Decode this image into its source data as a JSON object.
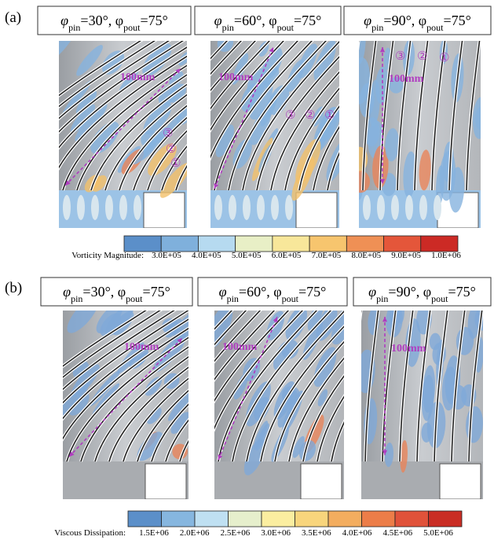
{
  "panels": [
    {
      "label": "(a)",
      "cases": [
        {
          "title": [
            "φ",
            "pin",
            "=30°, φ",
            "pout",
            "=75°"
          ],
          "dimension": "100mm",
          "markers": [
            "③",
            "②",
            "①"
          ]
        },
        {
          "title": [
            "φ",
            "pin",
            "=60°, φ",
            "pout",
            "=75°"
          ],
          "dimension": "100mm",
          "markers": [
            "③",
            "②",
            "①"
          ]
        },
        {
          "title": [
            "φ",
            "pin",
            "=90°, φ",
            "pout",
            "=75°"
          ],
          "dimension": "100mm",
          "markers": [
            "③",
            "②",
            "①"
          ]
        }
      ],
      "colorbar": {
        "title": "Vorticity Magnitude:",
        "colors": [
          "#5b8fc9",
          "#7fb0dc",
          "#b6daf0",
          "#e8efc6",
          "#f8e79a",
          "#f7c56e",
          "#ef9055",
          "#e4563a",
          "#cc2a25"
        ],
        "labels": [
          "3.0E+05",
          "4.0E+05",
          "5.0E+05",
          "6.0E+05",
          "7.0E+05",
          "8.0E+05",
          "9.0E+05",
          "1.0E+06"
        ]
      }
    },
    {
      "label": "(b)",
      "cases": [
        {
          "title": [
            "φ",
            "pin",
            "=30°, φ",
            "pout",
            "=75°"
          ],
          "dimension": "100mm"
        },
        {
          "title": [
            "φ",
            "pin",
            "=60°, φ",
            "pout",
            "=75°"
          ],
          "dimension": "100mm"
        },
        {
          "title": [
            "φ",
            "pin",
            "=90°, φ",
            "pout",
            "=75°"
          ],
          "dimension": "100mm"
        }
      ],
      "colorbar": {
        "title": "Viscous Dissipation:",
        "colors": [
          "#5b8fc9",
          "#86b6df",
          "#bfe0f2",
          "#e6efcc",
          "#fbeea0",
          "#f8d57c",
          "#f3ad5f",
          "#ec7d48",
          "#e0523a",
          "#c92d24"
        ],
        "labels": [
          "1.5E+06",
          "2.0E+06",
          "2.5E+06",
          "3.0E+06",
          "3.5E+06",
          "4.0E+06",
          "4.5E+06",
          "5.0E+06"
        ]
      }
    }
  ]
}
